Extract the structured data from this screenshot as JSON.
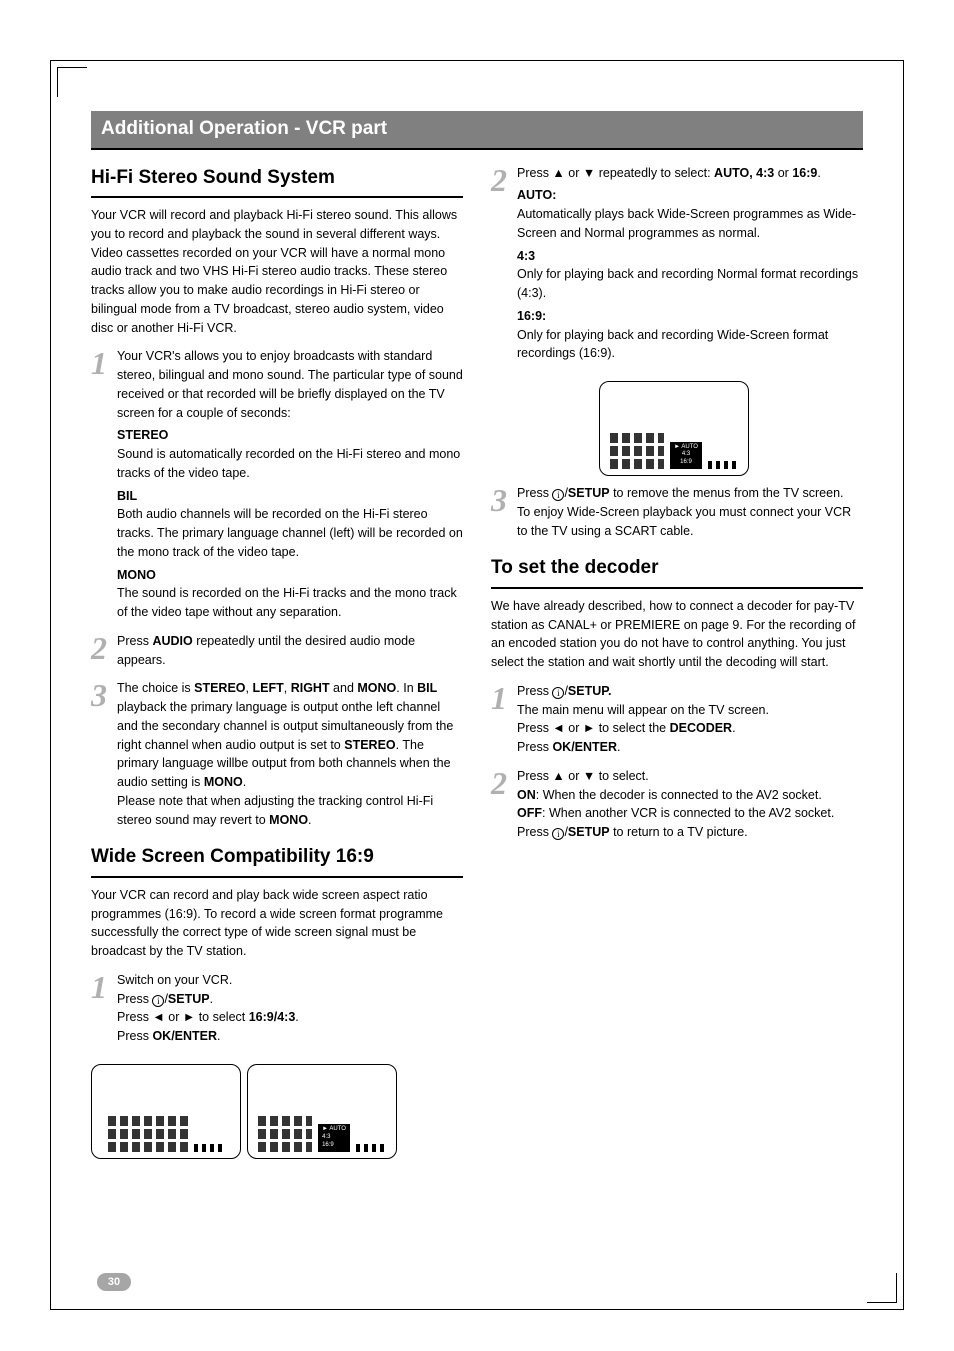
{
  "section_title": "Additional Operation - VCR part",
  "page_number": "30",
  "left": {
    "hifi": {
      "title": "Hi-Fi Stereo Sound System",
      "intro": "Your VCR will record and playback Hi-Fi stereo sound. This allows you to record and playback the sound in several different ways. Video cassettes recorded on your VCR will have a normal mono audio track and two VHS Hi-Fi stereo audio tracks. These stereo tracks allow you to make audio recordings in Hi-Fi stereo or bilingual mode from a TV broadcast, stereo audio system, video disc or another Hi-Fi VCR.",
      "step1_lead": "Your VCR's allows you to enjoy broadcasts with standard stereo, bilingual and mono sound. The particular type of sound received or that recorded will be briefly displayed on the TV screen for a couple of seconds:",
      "stereo_h": "STEREO",
      "stereo_b": "Sound is automatically recorded on the Hi-Fi stereo and mono tracks of the video tape.",
      "bil_h": "BIL",
      "bil_b": "Both audio channels will be recorded on the Hi-Fi stereo tracks. The primary language channel (left) will be recorded on the mono track of the video tape.",
      "mono_h": "MONO",
      "mono_b": "The sound is recorded on the Hi-Fi tracks and the mono track of the video tape without any separation.",
      "step2_a": "Press ",
      "step2_b": "AUDIO",
      "step2_c": " repeatedly until the desired audio mode appears.",
      "step3": "The choice is <b>STEREO</b>, <b>LEFT</b>, <b>RIGHT</b> and <b>MONO</b>. In <b>BIL</b> playback the primary language is output onthe left channel and the secondary channel is output simultaneously from the right channel when audio output is set to <b>STEREO</b>. The primary language willbe output from both channels when the audio setting is <b>MONO</b>.<br>Please note that when adjusting the tracking control Hi-Fi stereo sound may revert to <b>MONO</b>."
    },
    "wide": {
      "title": "Wide Screen Compatibility 16:9",
      "intro": "Your VCR can record and play back wide screen aspect ratio programmes (16:9). To record a wide screen format programme successfully the correct type of wide screen signal must be broadcast by the TV station.",
      "step1": "Switch on your VCR.<br>Press <span class=\"info-icon\">i</span>/<b>SETUP</b>.<br>Press ◄ or ► to select <b>16:9/4:3</b>.<br>Press <b>OK/ENTER</b>."
    }
  },
  "right": {
    "step2": "Press ▲ or ▼ repeatedly to select: <b>AUTO, 4:3</b> or <b>16:9</b>.",
    "auto_h": "AUTO",
    "auto_b": "Automatically plays back Wide-Screen programmes as Wide-Screen and Normal programmes as normal.",
    "r43_h": "4:3",
    "r43_b": "Only for playing back and recording Normal format recordings (4:3).",
    "r169_h": "16:9:",
    "r169_b": "Only for playing back and recording Wide-Screen format recordings (16:9).",
    "step3": "Press <span class=\"info-icon\">i</span>/<b>SETUP</b> to remove the menus from the TV screen.<br>To enjoy Wide-Screen playback you must connect your VCR to the TV using a SCART cable.",
    "decoder": {
      "title": "To set the decoder",
      "intro": "We have already described, how to connect a decoder for pay-TV station as CANAL+ or PREMIERE on page 9. For the recording of an encoded station you do not have to control anything. You just select the station and wait shortly until the decoding will start.",
      "step1": "Press <span class=\"info-icon\">i</span>/<b>SETUP.</b><br>The main menu will appear on the TV screen.<br>Press ◄ or ► to select the <b>DECODER</b>.<br>Press <b>OK/ENTER</b>.",
      "step2": "Press ▲ or ▼ to select.<br><b>ON</b>: When the decoder is connected to the AV2 socket.<br><b>OFF</b>: When another VCR is connected to the AV2 socket.<br>Press <span class=\"info-icon\">i</span>/<b>SETUP</b> to return to a TV picture."
    }
  },
  "tv_menu": {
    "opt1": "AUTO",
    "opt2": "4:3",
    "opt3": "16:9"
  }
}
